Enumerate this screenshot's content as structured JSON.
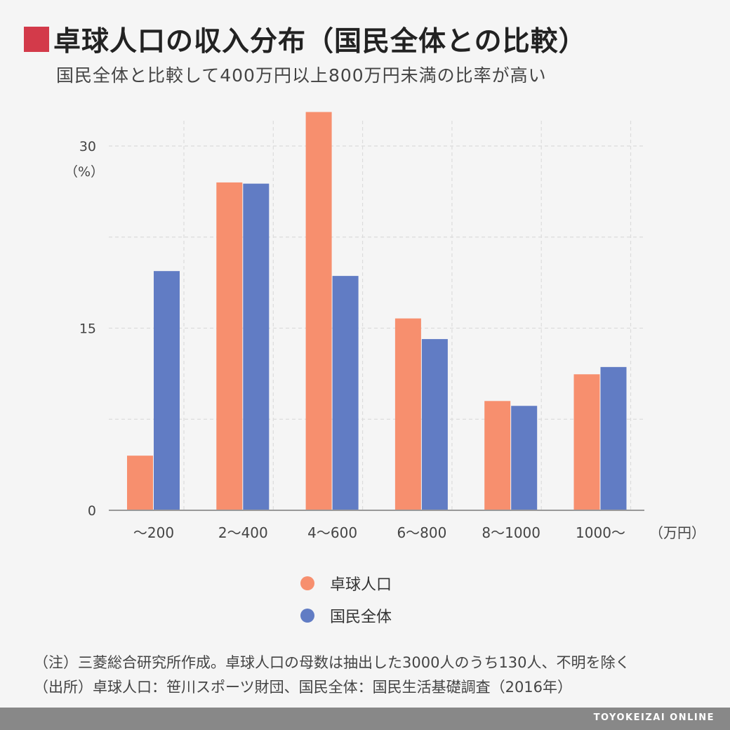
{
  "header": {
    "title": "卓球人口の収入分布（国民全体との比較）",
    "subtitle": "国民全体と比較して400万円以上800万円未満の比率が高い"
  },
  "chart_data": {
    "type": "bar",
    "categories": [
      "～200",
      "2～400",
      "4～600",
      "6～800",
      "8～1000",
      "1000～"
    ],
    "series": [
      {
        "name": "卓球人口",
        "color": "#f78f6e",
        "values": [
          4.5,
          27.0,
          32.8,
          15.8,
          9.0,
          11.2
        ]
      },
      {
        "name": "国民全体",
        "color": "#617cc4",
        "values": [
          19.7,
          26.9,
          19.3,
          14.1,
          8.6,
          11.8
        ]
      }
    ],
    "ylim": [
      0,
      33
    ],
    "yticks": [
      "0",
      "15",
      "30"
    ],
    "ylabel": "（%）",
    "xlabel": "（万円）",
    "grid": true,
    "legend_position": "bottom"
  },
  "notes": {
    "note": "（注）三菱総合研究所作成。卓球人口の母数は抽出した3000人のうち130人、不明を除く",
    "source": "（出所）卓球人口：笹川スポーツ財団、国民全体：国民生活基礎調査（2016年）"
  },
  "footer": {
    "brand": "TOYOKEIZAI ONLINE"
  }
}
